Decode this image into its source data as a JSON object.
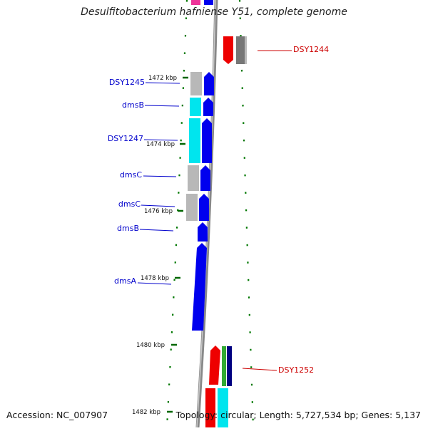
{
  "title": "Desulfitobacterium hafniense Y51, complete genome",
  "footer": {
    "accession": "Accession: NC_007907",
    "summary": "Topology: circular; Length: 5,727,534 bp; Genes: 5,137"
  },
  "colors": {
    "forward_gene": "#0000ee",
    "label_blue": "#0000cc",
    "label_red": "#cc0000",
    "tick": "#006600",
    "backbone": "#888888",
    "cyan": "#00e5ee",
    "gray": "#b8b8b8",
    "red": "#ee0000",
    "green": "#33aa33",
    "navy": "#000080",
    "magenta": "#ee3399"
  },
  "ticks": [
    {
      "label": "1472 kbp"
    },
    {
      "label": "1474 kbp"
    },
    {
      "label": "1476 kbp"
    },
    {
      "label": "1478 kbp"
    },
    {
      "label": "1480 kbp"
    },
    {
      "label": "1482 kbp"
    }
  ],
  "gene_labels": [
    {
      "text": "DSY1245",
      "color": "blue"
    },
    {
      "text": "dmsB",
      "color": "blue"
    },
    {
      "text": "DSY1247",
      "color": "blue"
    },
    {
      "text": "dmsC",
      "color": "blue"
    },
    {
      "text": "dmsC",
      "color": "blue"
    },
    {
      "text": "dmsB",
      "color": "blue"
    },
    {
      "text": "dmsA",
      "color": "blue"
    },
    {
      "text": "DSY1244",
      "color": "red"
    },
    {
      "text": "DSY1252",
      "color": "red"
    }
  ]
}
